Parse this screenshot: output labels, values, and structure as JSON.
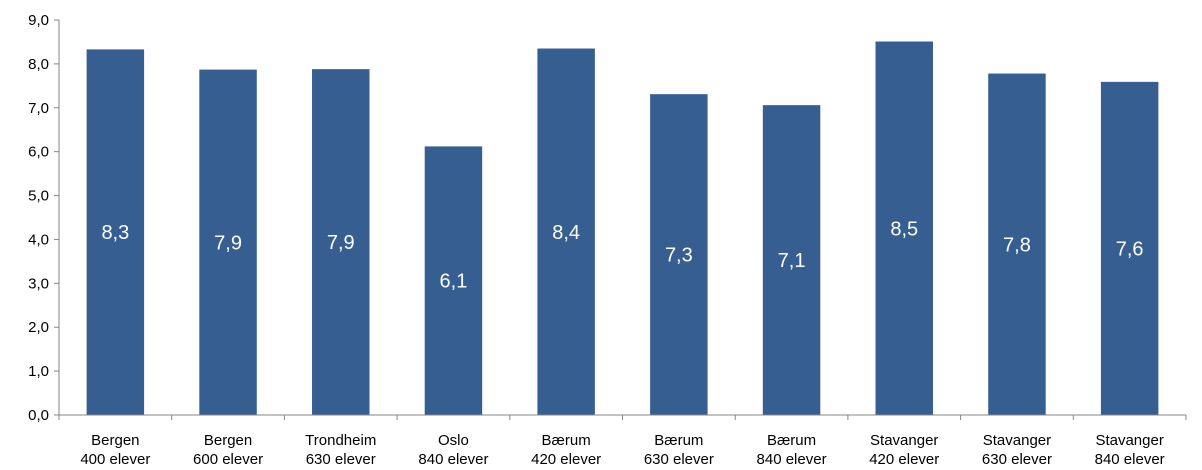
{
  "chart_data": {
    "type": "bar",
    "categories": [
      [
        "Bergen",
        "400 elever"
      ],
      [
        "Bergen",
        "600 elever"
      ],
      [
        "Trondheim",
        "630 elever"
      ],
      [
        "Oslo",
        "840 elever"
      ],
      [
        "Bærum",
        "420 elever"
      ],
      [
        "Bærum",
        "630 elever"
      ],
      [
        "Bærum",
        "840 elever"
      ],
      [
        "Stavanger",
        "420 elever"
      ],
      [
        "Stavanger",
        "630 elever"
      ],
      [
        "Stavanger",
        "840 elever"
      ]
    ],
    "values": [
      8.33,
      7.87,
      7.88,
      6.12,
      8.35,
      7.31,
      7.06,
      8.51,
      7.78,
      7.59
    ],
    "data_labels": [
      "8,3",
      "7,9",
      "7,9",
      "6,1",
      "8,4",
      "7,3",
      "7,1",
      "8,5",
      "7,8",
      "7,6"
    ],
    "y_ticks": [
      "0,0",
      "1,0",
      "2,0",
      "3,0",
      "4,0",
      "5,0",
      "6,0",
      "7,0",
      "8,0",
      "9,0"
    ],
    "ylim": [
      0,
      9
    ],
    "title": "",
    "xlabel": "",
    "ylabel": "",
    "grid": false,
    "legend": "none",
    "bar_color": "#375E91",
    "axis_color": "#868686"
  }
}
